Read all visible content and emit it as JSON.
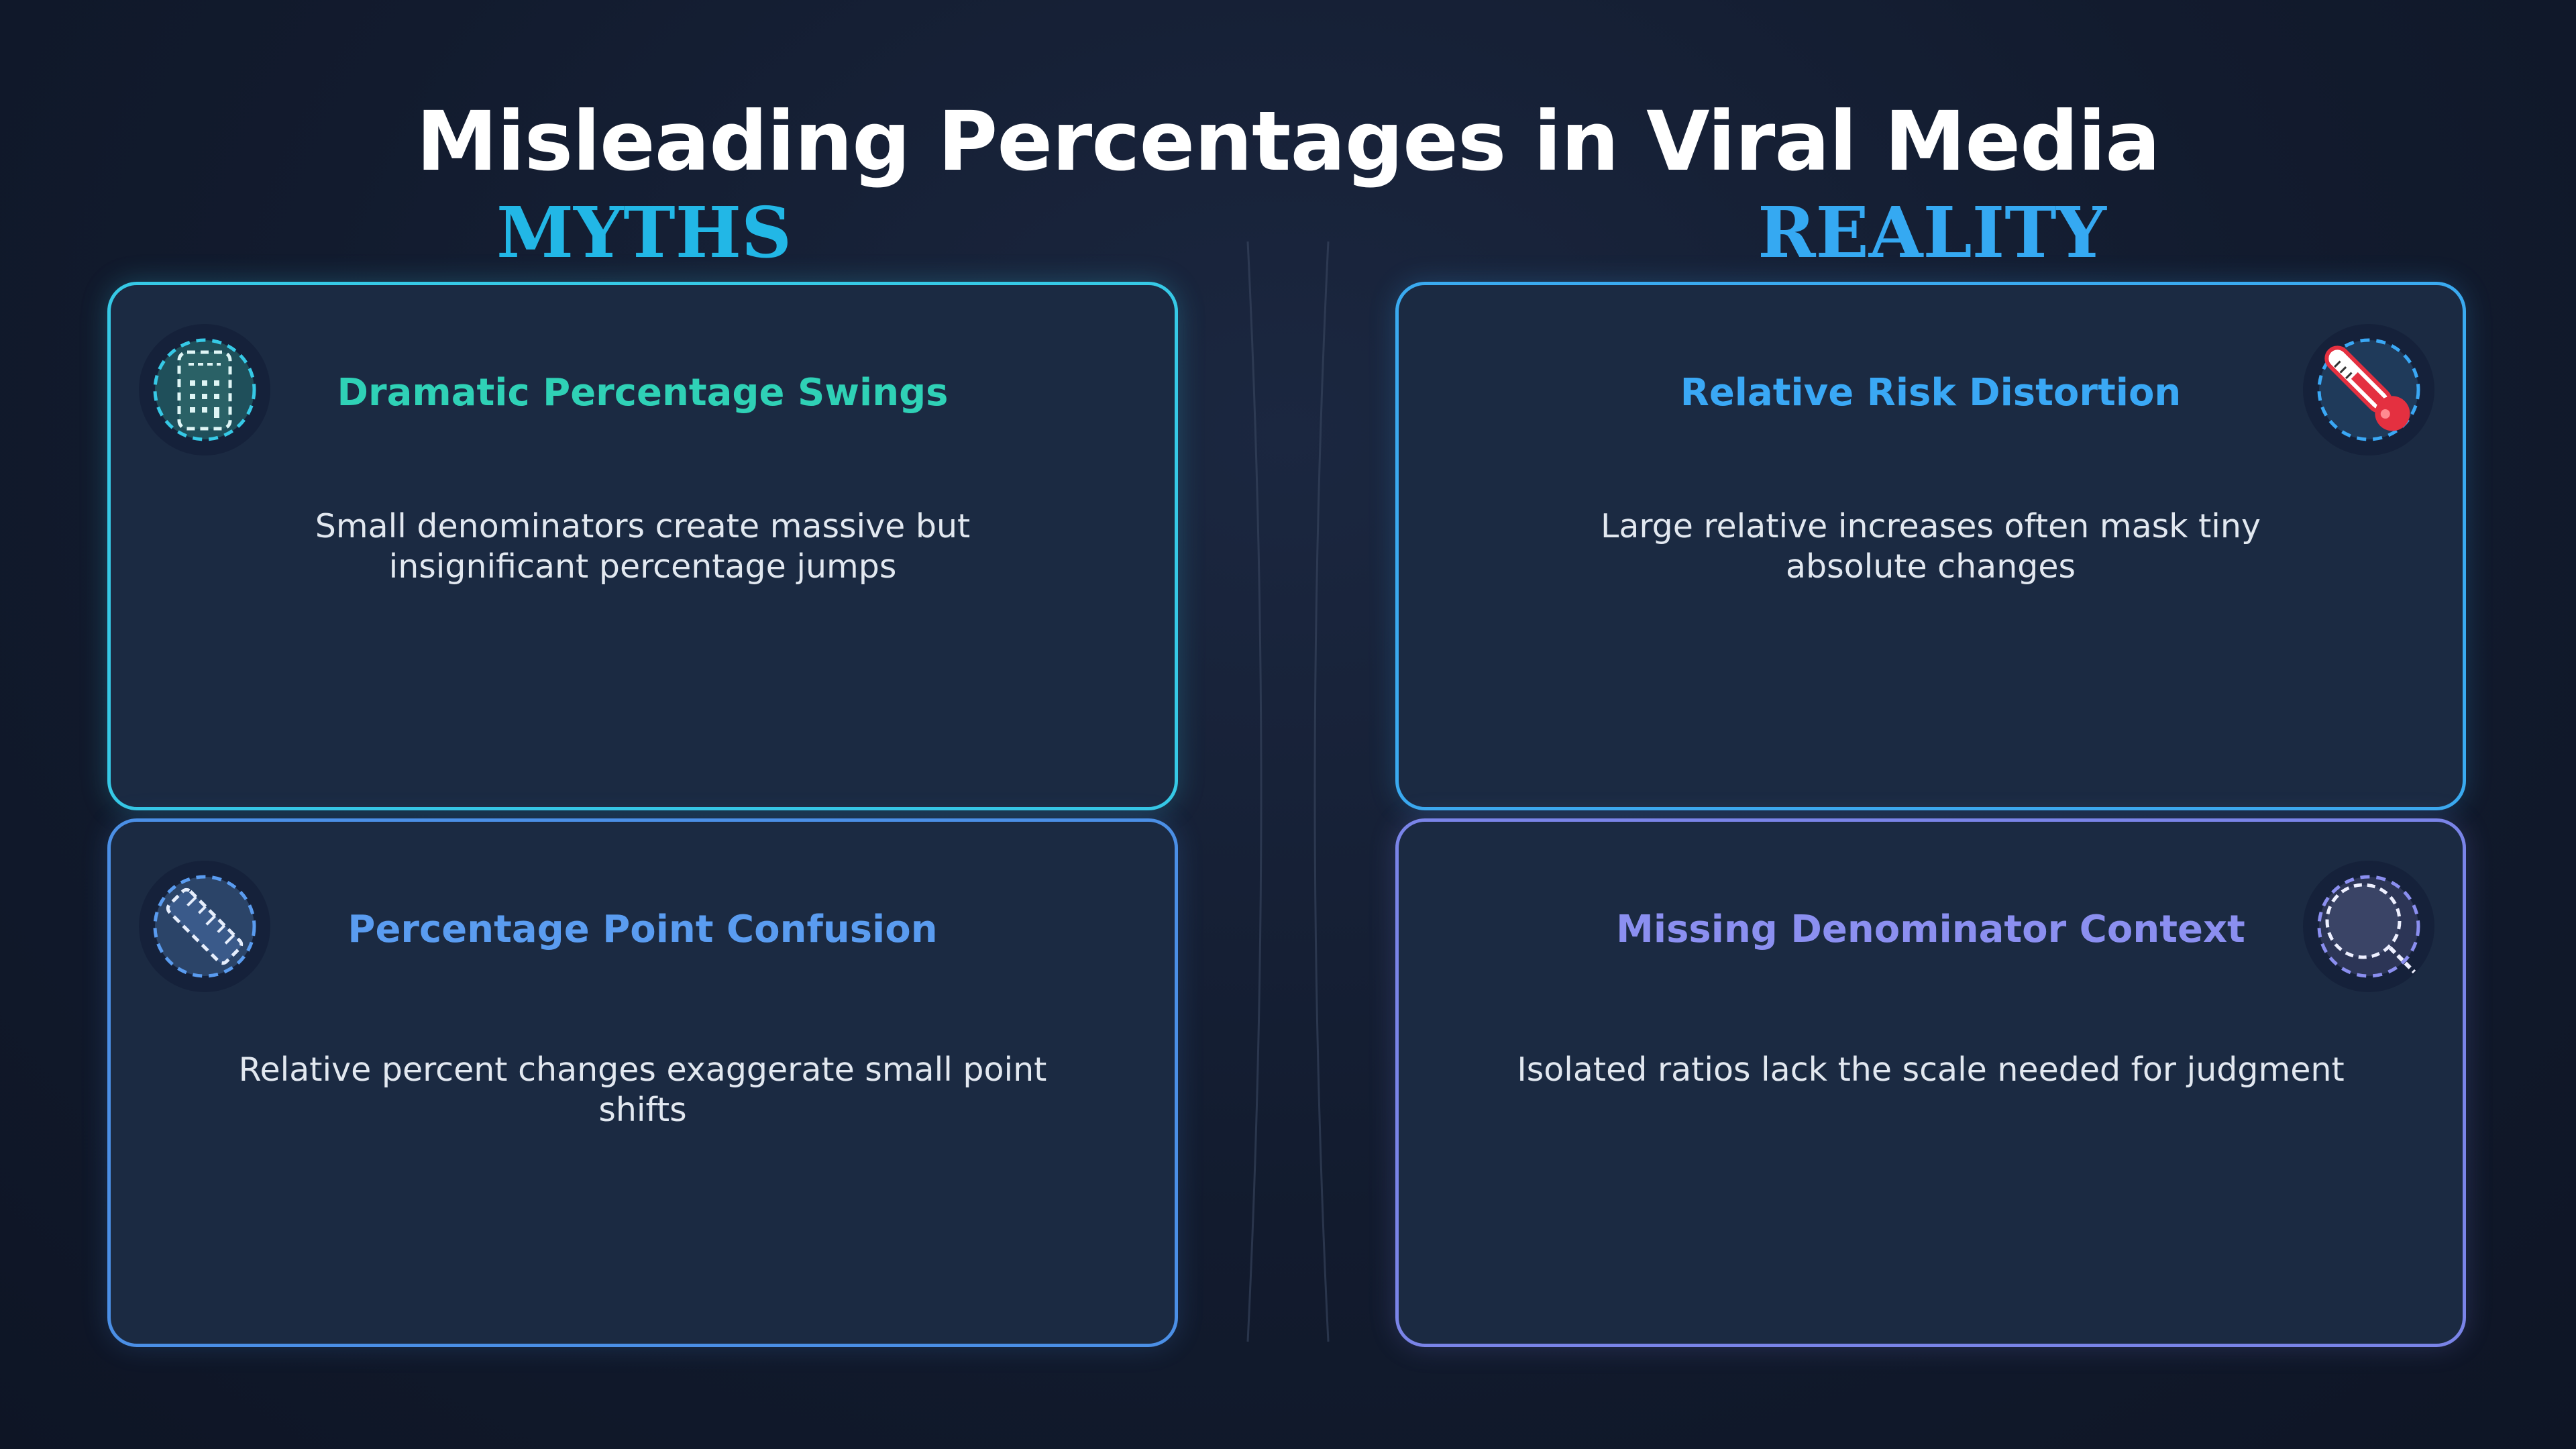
{
  "title": "Misleading Percentages in Viral Media",
  "columns": {
    "myths": "MYTHS",
    "reality": "REALITY"
  },
  "cards": {
    "top_left": {
      "title": "Dramatic Percentage Swings",
      "text": "Small denominators create massive but insignificant percentage jumps",
      "icon": "calculator-icon",
      "color": "#2fd1b6"
    },
    "bottom_left": {
      "title": "Percentage Point Confusion",
      "text": "Relative percent changes exaggerate small point shifts",
      "icon": "ruler-icon",
      "color": "#5a9cf0"
    },
    "top_right": {
      "title": "Relative Risk Distortion",
      "text": "Large relative increases often mask tiny absolute changes",
      "icon": "thermometer-icon",
      "color": "#3aa8f5"
    },
    "bottom_right": {
      "title": "Missing Denominator Context",
      "text": "Isolated ratios lack the scale needed for judgment",
      "icon": "magnifier-icon",
      "color": "#8b8ff0"
    }
  }
}
